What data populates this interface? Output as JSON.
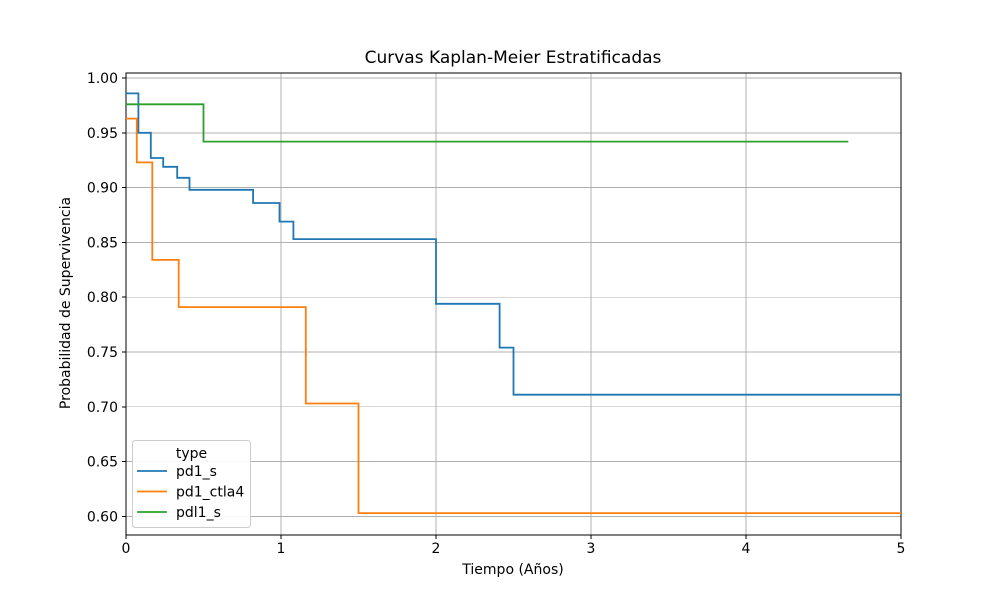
{
  "chart_data": {
    "type": "line",
    "subtype": "kaplan-meier-step",
    "title": "Curvas Kaplan-Meier Estratificadas",
    "xlabel": "Tiempo (Años)",
    "ylabel": "Probabilidad de Supervivencia",
    "xlim": [
      0,
      5
    ],
    "ylim": [
      0.583,
      1.0046
    ],
    "grid": true,
    "step_mode": "post",
    "xticks": [
      {
        "value": 0,
        "label": "0"
      },
      {
        "value": 1,
        "label": "1"
      },
      {
        "value": 2,
        "label": "2"
      },
      {
        "value": 3,
        "label": "3"
      },
      {
        "value": 4,
        "label": "4"
      },
      {
        "value": 5,
        "label": "5"
      }
    ],
    "yticks": [
      {
        "value": 0.6,
        "label": "0.60"
      },
      {
        "value": 0.65,
        "label": "0.65"
      },
      {
        "value": 0.7,
        "label": "0.70"
      },
      {
        "value": 0.75,
        "label": "0.75"
      },
      {
        "value": 0.8,
        "label": "0.80"
      },
      {
        "value": 0.85,
        "label": "0.85"
      },
      {
        "value": 0.9,
        "label": "0.90"
      },
      {
        "value": 0.95,
        "label": "0.95"
      },
      {
        "value": 1.0,
        "label": "1.00"
      }
    ],
    "legend": {
      "title": "type",
      "location": "lower left"
    },
    "colors": {
      "grid": "#b0b0b0",
      "spine": "#000000",
      "text": "#000000",
      "background": "#ffffff",
      "legend_border": "#cccccc"
    },
    "series": [
      {
        "name": "pd1_s",
        "color": "#1f77b4",
        "end_time": 5.0,
        "points": [
          [
            0.0,
            0.986
          ],
          [
            0.08,
            0.95
          ],
          [
            0.16,
            0.927
          ],
          [
            0.24,
            0.919
          ],
          [
            0.33,
            0.909
          ],
          [
            0.41,
            0.898
          ],
          [
            0.82,
            0.886
          ],
          [
            0.99,
            0.869
          ],
          [
            1.08,
            0.853
          ],
          [
            2.0,
            0.794
          ],
          [
            2.41,
            0.754
          ],
          [
            2.5,
            0.711
          ]
        ]
      },
      {
        "name": "pd1_ctla4",
        "color": "#ff7f0e",
        "end_time": 5.0,
        "points": [
          [
            0.0,
            0.963
          ],
          [
            0.07,
            0.923
          ],
          [
            0.17,
            0.834
          ],
          [
            0.34,
            0.791
          ],
          [
            1.16,
            0.703
          ],
          [
            1.5,
            0.603
          ]
        ]
      },
      {
        "name": "pdl1_s",
        "color": "#2ca02c",
        "end_time": 4.66,
        "points": [
          [
            0.0,
            0.976
          ],
          [
            0.5,
            0.942
          ]
        ]
      }
    ]
  }
}
